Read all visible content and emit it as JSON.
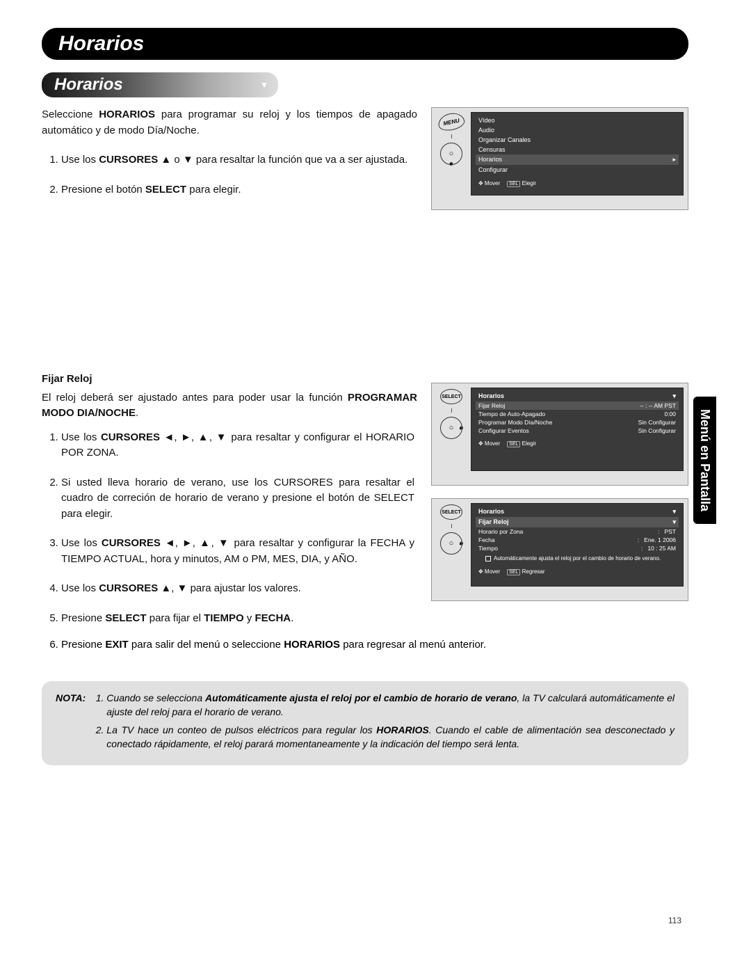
{
  "page": {
    "number": "113",
    "side_tab": "Menú en Pantalla",
    "header": "Horarios"
  },
  "section": {
    "title": "Horarios"
  },
  "intro": {
    "line1a": "Seleccione ",
    "bold1": "HORARIOS",
    "line1b": " para programar su reloj y los tiempos de apagado automático y de modo Día/Noche."
  },
  "steps1": {
    "s1a": "Use los ",
    "s1bold": "CURSORES",
    "s1b": " ▲ o ▼ para resaltar la función que va a ser ajustada.",
    "s2a": "Presione el botón ",
    "s2bold": "SELECT",
    "s2b": " para elegir."
  },
  "fijar": {
    "heading": "Fijar Reloj",
    "p1a": "El reloj deberá ser ajustado antes para poder usar la función ",
    "p1bold": "PROGRAMAR MODO DIA/NOCHE",
    "p1b": ".",
    "s1a": "Use los ",
    "s1bold": "CURSORES",
    "s1b": " ◄, ►, ▲, ▼ para resaltar y configurar el HORARIO POR ZONA.",
    "s2": "Si usted lleva horario de verano, use los CURSORES para resaltar el cuadro de correción de horario de verano y presione el botón de SELECT para elegir.",
    "s3a": "Use los ",
    "s3bold": "CURSORES",
    "s3b": " ◄, ►, ▲, ▼ para resaltar y configurar la FECHA y TIEMPO ACTUAL, hora y minutos, AM o PM, MES, DIA, y AÑO.",
    "s4a": "Use los ",
    "s4bold": "CURSORES",
    "s4b": " ▲, ▼ para ajustar los valores.",
    "s5a": "Presione ",
    "s5bold1": "SELECT",
    "s5b": " para fijar el ",
    "s5bold2": "TIEMPO",
    "s5c": " y ",
    "s5bold3": "FECHA",
    "s5d": ".",
    "s6a": "Presione ",
    "s6bold1": "EXIT",
    "s6b": " para salir del menú o seleccione ",
    "s6bold2": "HORARIOS",
    "s6c": " para regresar al menú anterior."
  },
  "nota": {
    "label": "NOTA:",
    "n1a": "Cuando se selecciona ",
    "n1bold": "Automáticamente ajusta el reloj por el cambio de horario de verano",
    "n1b": ", la TV calculará automáticamente el ajuste del reloj para el horario de verano.",
    "n2a": "La TV hace un conteo de pulsos eléctricos para regular los ",
    "n2bold": "HORARIOS",
    "n2b": ". Cuando el cable de alimentación sea desconectado y conectado rápidamente, el reloj parará momentaneamente y la indicación del tiempo será lenta."
  },
  "osd1": {
    "items": [
      "Vídeo",
      "Audio",
      "Organizar Canales",
      "Censuras",
      "Horarios",
      "Configurar"
    ],
    "selected_index": 4,
    "foot_move": "Mover",
    "foot_sel": "SEL",
    "foot_elegir": "Elegir"
  },
  "osd2": {
    "title": "Horarios",
    "rows": [
      {
        "k": "Fijar Reloj",
        "v": "-- : -- AM PST",
        "sel": true
      },
      {
        "k": "Tiempo de Auto-Apagado",
        "v": "0:00"
      },
      {
        "k": "Programar Modo Día/Noche",
        "v": "Sin Configurar"
      },
      {
        "k": "Configurar Eventos",
        "v": "Sin Configurar"
      }
    ],
    "foot_move": "Mover",
    "foot_sel": "SEL",
    "foot_elegir": "Elegir"
  },
  "osd3": {
    "title": "Horarios",
    "subtitle": "Fijar Reloj",
    "kv": [
      {
        "k": "Horario por Zona",
        "v": "PST"
      },
      {
        "k": "Fecha",
        "v": "Ene. 1 2006"
      },
      {
        "k": "Tiempo",
        "v": "10 : 25 AM"
      }
    ],
    "note": "Automáticamente ajusta el reloj por el cambio de horario de verano.",
    "foot_move": "Mover",
    "foot_sel": "SEL",
    "foot_reg": "Regresar"
  },
  "buttons": {
    "menu": "MENU",
    "select": "SELECT"
  }
}
